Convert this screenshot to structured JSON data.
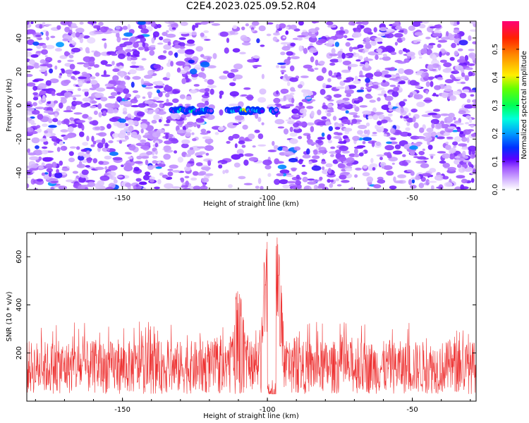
{
  "title": "C2E4.2023.025.09.52.R04",
  "chart_data": [
    {
      "type": "heatmap",
      "xlabel": "Height of straight line (km)",
      "ylabel": "Frequency (Hz)",
      "xlim": [
        -183,
        -28
      ],
      "ylim": [
        -50,
        50
      ],
      "xticks": [
        -150,
        -100,
        -50
      ],
      "yticks": [
        -40,
        -20,
        0,
        20,
        40
      ],
      "colorbar": {
        "label": "Normalized spectral amplitude",
        "ticks": [
          0.0,
          0.1,
          0.2,
          0.3,
          0.4,
          0.5
        ],
        "range": [
          0.0,
          0.6
        ],
        "colormap": [
          "#ffffff",
          "#cc99ff",
          "#8800ff",
          "#2200ff",
          "#0088ff",
          "#00ffee",
          "#00ff44",
          "#ccff00",
          "#ffbb00",
          "#ff2200",
          "#ff0066"
        ]
      },
      "signal_track": {
        "frequency_hz": -3,
        "x_range": [
          -133,
          -97
        ],
        "peaks": [
          {
            "x": -130,
            "amplitude": 0.3
          },
          {
            "x": -126,
            "amplitude": 0.28
          },
          {
            "x": -122,
            "amplitude": 0.22
          },
          {
            "x": -112,
            "amplitude": 0.3
          },
          {
            "x": -108,
            "amplitude": 0.45
          },
          {
            "x": -104,
            "amplitude": 0.3
          },
          {
            "x": -100,
            "amplitude": 0.4
          }
        ]
      },
      "gaps": [
        [
          -120,
          -113
        ],
        [
          -103,
          -98
        ]
      ],
      "noise_level": 0.06
    },
    {
      "type": "line",
      "xlabel": "Height of straight line (km)",
      "ylabel": "SNR (10 * v/v)",
      "xlim": [
        -183,
        -28
      ],
      "ylim": [
        0,
        700
      ],
      "xticks": [
        -150,
        -100,
        -50
      ],
      "yticks": [
        200,
        400,
        600
      ],
      "color": "#ee3333",
      "noise_band": {
        "low": 30,
        "high": 250,
        "typical_max": 330
      },
      "features": [
        {
          "x": -110,
          "peak": 475
        },
        {
          "x": -99,
          "peak": 680
        },
        {
          "x": -97,
          "peak": 700
        }
      ],
      "dropout": [
        -100,
        -97
      ]
    }
  ]
}
